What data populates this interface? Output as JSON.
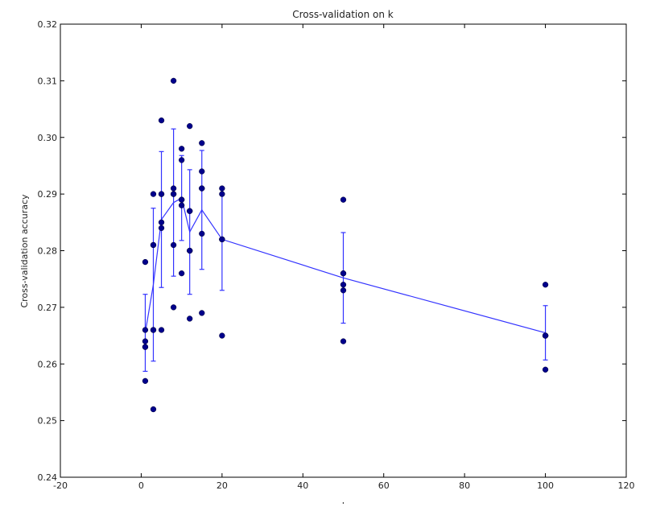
{
  "chart_data": {
    "type": "scatter",
    "title": "Cross-validation on k",
    "xlabel": "k",
    "ylabel": "Cross-validation accuracy",
    "xlim": [
      -20,
      120
    ],
    "ylim": [
      0.24,
      0.32
    ],
    "xticks": [
      "-20",
      "0",
      "20",
      "40",
      "60",
      "80",
      "100",
      "120"
    ],
    "yticks": [
      "0.24",
      "0.25",
      "0.26",
      "0.27",
      "0.28",
      "0.29",
      "0.30",
      "0.31",
      "0.32"
    ],
    "grid": false,
    "legend": "none",
    "colors": {
      "points": "#00008b",
      "mean_line": "#3333ff",
      "errorbar": "#3333ff"
    },
    "points": {
      "x": [
        1,
        1,
        1,
        1,
        1,
        1,
        3,
        3,
        3,
        3,
        3,
        3,
        5,
        5,
        5,
        5,
        5,
        5,
        8,
        8,
        8,
        8,
        8,
        8,
        10,
        10,
        10,
        10,
        10,
        10,
        12,
        12,
        12,
        12,
        12,
        12,
        15,
        15,
        15,
        15,
        15,
        15,
        20,
        20,
        20,
        20,
        20,
        20,
        50,
        50,
        50,
        50,
        50,
        50,
        100,
        100,
        100,
        100,
        100,
        100
      ],
      "y": [
        0.257,
        0.263,
        0.264,
        0.266,
        0.278,
        0.263,
        0.252,
        0.266,
        0.281,
        0.281,
        0.29,
        0.266,
        0.266,
        0.284,
        0.285,
        0.29,
        0.303,
        0.29,
        0.27,
        0.281,
        0.29,
        0.291,
        0.31,
        0.29,
        0.276,
        0.288,
        0.289,
        0.296,
        0.298,
        0.289,
        0.268,
        0.28,
        0.287,
        0.302,
        0.28,
        0.287,
        0.269,
        0.283,
        0.291,
        0.294,
        0.299,
        0.291,
        0.265,
        0.282,
        0.29,
        0.291,
        0.282,
        0.282,
        0.264,
        0.273,
        0.274,
        0.276,
        0.289,
        0.276,
        0.259,
        0.265,
        0.265,
        0.274,
        0.265,
        0.265
      ]
    },
    "mean_series": {
      "x": [
        1,
        3,
        5,
        8,
        10,
        12,
        15,
        20,
        50,
        100
      ],
      "mean": [
        0.2655,
        0.274,
        0.2855,
        0.2885,
        0.2893,
        0.2833,
        0.2872,
        0.282,
        0.2752,
        0.2655
      ],
      "std": [
        0.0068,
        0.0135,
        0.012,
        0.013,
        0.0075,
        0.011,
        0.0105,
        0.009,
        0.008,
        0.0048
      ]
    }
  }
}
